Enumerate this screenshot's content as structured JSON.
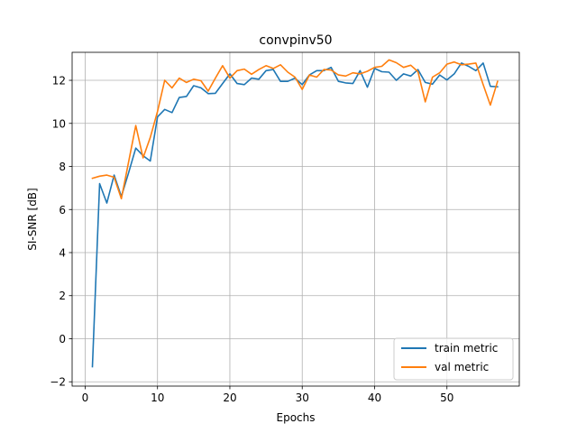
{
  "chart_data": {
    "type": "line",
    "title": "convpinv50",
    "xlabel": "Epochs",
    "ylabel": "SI-SNR [dB]",
    "xlim": [
      -1.8,
      60
    ],
    "ylim": [
      -2.2,
      13.3
    ],
    "xticks": [
      0,
      10,
      20,
      30,
      40,
      50
    ],
    "yticks": [
      -2,
      0,
      2,
      4,
      6,
      8,
      10,
      12
    ],
    "grid": true,
    "legend_position": "lower-right",
    "series": [
      {
        "name": "train metric",
        "color": "#1f77b4",
        "x": [
          1,
          2,
          3,
          4,
          5,
          6,
          7,
          8,
          9,
          10,
          11,
          12,
          13,
          14,
          15,
          16,
          17,
          18,
          19,
          20,
          21,
          22,
          23,
          24,
          25,
          26,
          27,
          28,
          29,
          30,
          31,
          32,
          33,
          34,
          35,
          36,
          37,
          38,
          39,
          40,
          41,
          42,
          43,
          44,
          45,
          46,
          47,
          48,
          49,
          50,
          51,
          52,
          53,
          54,
          55,
          56,
          57
        ],
        "values": [
          -1.3,
          7.2,
          6.3,
          7.6,
          6.6,
          7.7,
          8.85,
          8.5,
          8.25,
          10.3,
          10.65,
          10.5,
          11.2,
          11.25,
          11.75,
          11.65,
          11.38,
          11.4,
          11.85,
          12.3,
          11.85,
          11.8,
          12.1,
          12.05,
          12.45,
          12.5,
          11.95,
          11.95,
          12.1,
          11.8,
          12.25,
          12.45,
          12.45,
          12.6,
          11.95,
          11.88,
          11.85,
          12.45,
          11.68,
          12.55,
          12.4,
          12.38,
          12.0,
          12.3,
          12.2,
          12.5,
          11.9,
          11.82,
          12.25,
          12.02,
          12.3,
          12.8,
          12.65,
          12.45,
          12.8,
          11.72,
          11.7
        ]
      },
      {
        "name": "val metric",
        "color": "#ff7f0e",
        "x": [
          1,
          2,
          3,
          4,
          5,
          6,
          7,
          8,
          9,
          10,
          11,
          12,
          13,
          14,
          15,
          16,
          17,
          18,
          19,
          20,
          21,
          22,
          23,
          24,
          25,
          26,
          27,
          28,
          29,
          30,
          31,
          32,
          33,
          34,
          35,
          36,
          37,
          38,
          39,
          40,
          41,
          42,
          43,
          44,
          45,
          46,
          47,
          48,
          49,
          50,
          51,
          52,
          53,
          54,
          55,
          56,
          57
        ],
        "values": [
          7.45,
          7.55,
          7.6,
          7.5,
          6.5,
          8.2,
          9.9,
          8.4,
          9.35,
          10.55,
          12.0,
          11.65,
          12.1,
          11.9,
          12.05,
          11.98,
          11.5,
          12.1,
          12.68,
          12.1,
          12.45,
          12.52,
          12.28,
          12.5,
          12.68,
          12.55,
          12.72,
          12.38,
          12.15,
          11.58,
          12.25,
          12.15,
          12.5,
          12.48,
          12.25,
          12.2,
          12.35,
          12.3,
          12.42,
          12.6,
          12.65,
          12.95,
          12.82,
          12.6,
          12.7,
          12.4,
          11.0,
          12.15,
          12.35,
          12.75,
          12.85,
          12.72,
          12.75,
          12.8,
          11.8,
          10.85,
          11.95
        ]
      }
    ]
  }
}
